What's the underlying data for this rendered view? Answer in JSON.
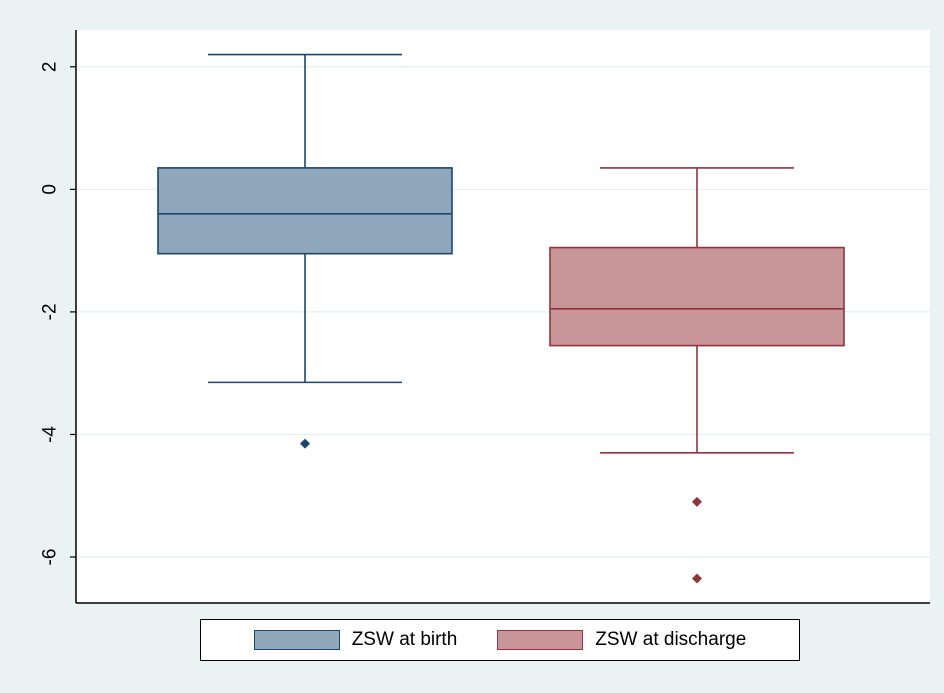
{
  "chart_data": {
    "type": "box",
    "title": "",
    "xlabel": "",
    "ylabel": "",
    "ylim": [
      -6.75,
      2.6
    ],
    "yticks": [
      2,
      0,
      -2,
      -4,
      -6
    ],
    "ytick_labels": [
      "2",
      "0",
      "-2",
      "-4",
      "-6"
    ],
    "grid": true,
    "legend_position": "bottom",
    "series": [
      {
        "name": "ZSW at birth",
        "fill": "#8fa7bb",
        "stroke": "#1a476f",
        "whisker_low": -3.15,
        "q1": -1.05,
        "median": -0.4,
        "q3": 0.35,
        "whisker_high": 2.2,
        "outliers": [
          -4.15
        ]
      },
      {
        "name": "ZSW at discharge",
        "fill": "#c89599",
        "stroke": "#90353b",
        "whisker_low": -4.3,
        "q1": -2.55,
        "median": -1.95,
        "q3": -0.95,
        "whisker_high": 0.35,
        "outliers": [
          -5.1,
          -6.35
        ]
      }
    ]
  }
}
